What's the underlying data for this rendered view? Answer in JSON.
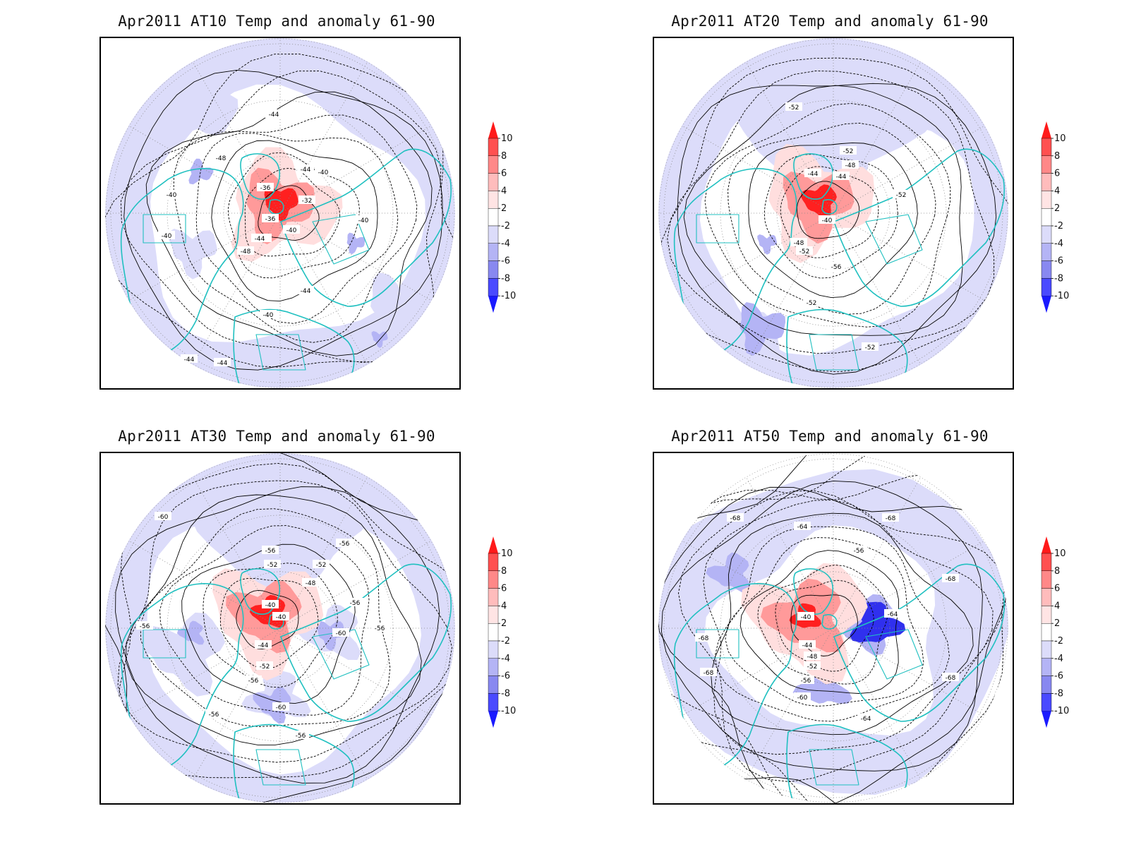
{
  "panels": [
    {
      "title": "Apr2011 AT10 Temp and anomaly 61-90",
      "contour_labels": [
        "-44",
        "-48",
        "-44",
        "-40",
        "-36",
        "-32",
        "-40",
        "-40",
        "-36",
        "-44",
        "-40",
        "-48",
        "-44",
        "-40",
        "-44",
        "-40",
        "-44",
        "-44"
      ]
    },
    {
      "title": "Apr2011 AT20 Temp and anomaly 61-90",
      "contour_labels": [
        "-52",
        "-52",
        "-48",
        "-44",
        "-44",
        "-52",
        "-40",
        "-48",
        "-52",
        "-56",
        "-52",
        "-52"
      ]
    },
    {
      "title": "Apr2011 AT30 Temp and anomaly 61-90",
      "contour_labels": [
        "-60",
        "-56",
        "-56",
        "-52",
        "-52",
        "-48",
        "-40",
        "-40",
        "-44",
        "-52",
        "-56",
        "-56",
        "-60",
        "-56",
        "-60",
        "-56",
        "-56",
        "-56"
      ]
    },
    {
      "title": "Apr2011 AT50 Temp and anomaly 61-90",
      "contour_labels": [
        "-68",
        "-64",
        "-68",
        "-56",
        "-68",
        "-40",
        "-64",
        "-44",
        "-48",
        "-52",
        "-56",
        "-60",
        "-64",
        "-68",
        "-68",
        "-68"
      ]
    }
  ],
  "colorbar": {
    "labels": [
      "10",
      "8",
      "6",
      "4",
      "2",
      "-2",
      "-4",
      "-6",
      "-8",
      "-10"
    ],
    "colors": [
      "#ff1a1a",
      "#ff5050",
      "#ff8888",
      "#ffbcbc",
      "#ffe4e4",
      "#ffffff",
      "#dcdcfa",
      "#b4b4f5",
      "#8888f0",
      "#4a4aff",
      "#1a1aff"
    ]
  },
  "colors": {
    "coastline": "#20c0c0",
    "contour": "#000000",
    "neg_weak": "#dcdcfa",
    "neg_mod": "#b4b4f5",
    "neg_strong": "#6a6aff",
    "pos_weak": "#ffdede",
    "pos_mod": "#ff9a9a",
    "pos_strong": "#ff2020"
  }
}
